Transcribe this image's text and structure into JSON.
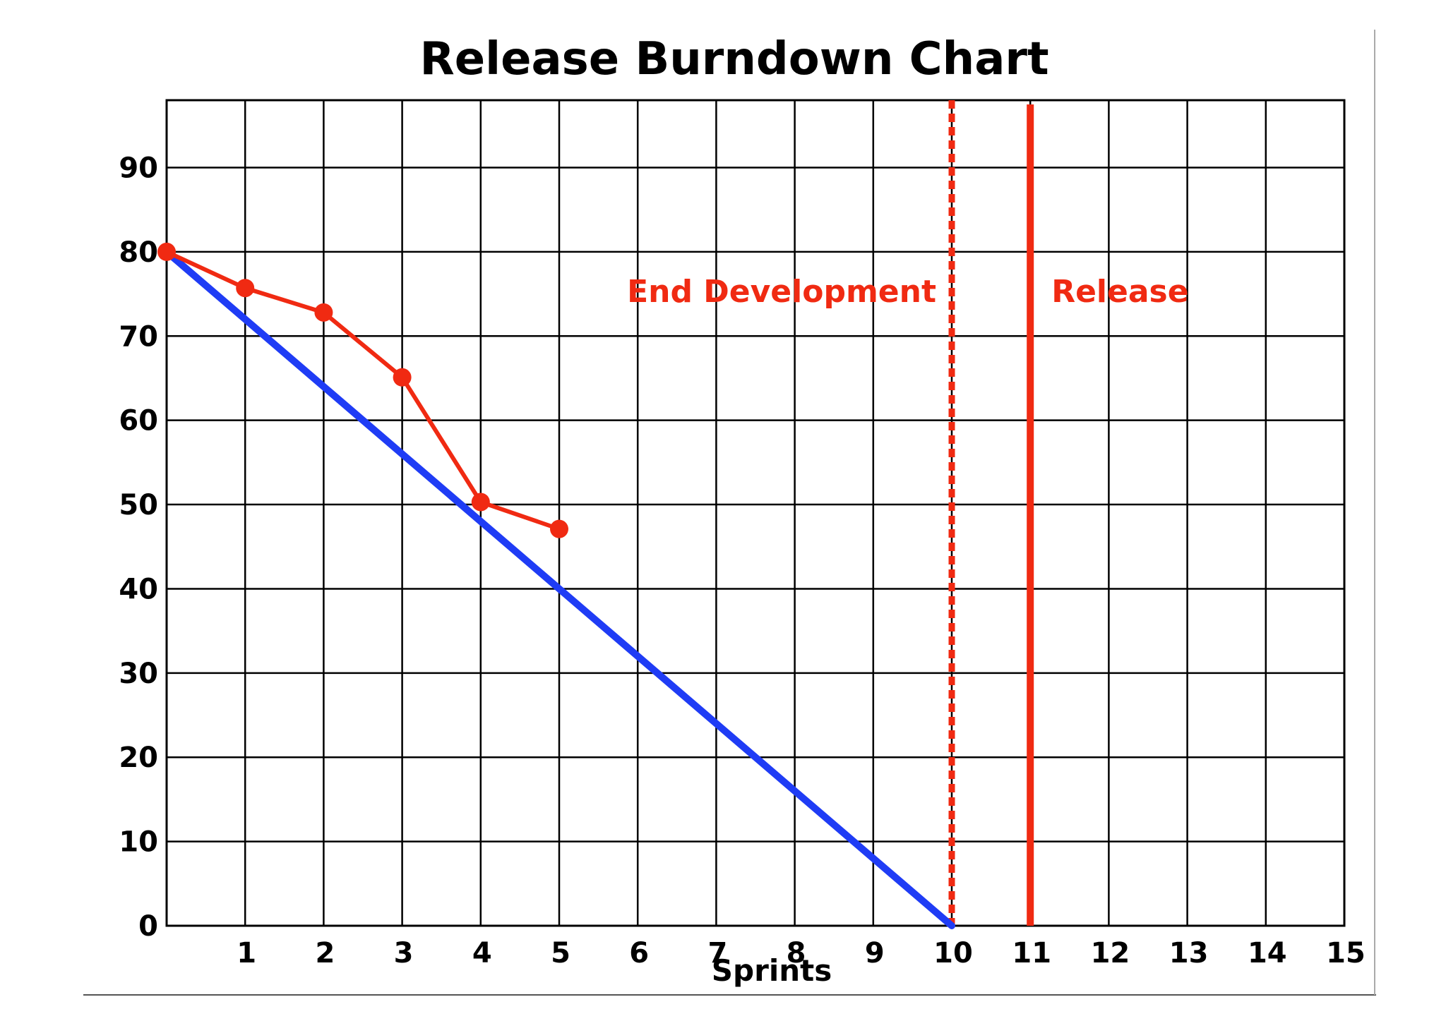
{
  "chart_data": {
    "type": "line",
    "title": "Release Burndown Chart",
    "xlabel": "Sprints",
    "ylabel": "",
    "xlim": [
      0,
      15
    ],
    "ylim": [
      0,
      98
    ],
    "x_ticks": [
      1,
      2,
      3,
      4,
      5,
      6,
      7,
      8,
      9,
      10,
      11,
      12,
      13,
      14,
      15
    ],
    "y_ticks": [
      0,
      10,
      20,
      30,
      40,
      50,
      60,
      70,
      80,
      90
    ],
    "grid": true,
    "series": [
      {
        "style": "ideal",
        "color": "#1f3cf5",
        "x": [
          0,
          10
        ],
        "y": [
          80,
          0
        ]
      },
      {
        "style": "actual",
        "color": "#f02a12",
        "x": [
          0,
          1,
          2,
          3,
          4,
          5
        ],
        "y": [
          80,
          75.7,
          72.8,
          65.1,
          50.3,
          47.1
        ]
      }
    ],
    "markers": [
      {
        "x": 10,
        "label": "End Development",
        "style": "dashed",
        "color": "#f02a12"
      },
      {
        "x": 11,
        "label": "Release",
        "style": "solid",
        "color": "#f02a12"
      }
    ]
  }
}
